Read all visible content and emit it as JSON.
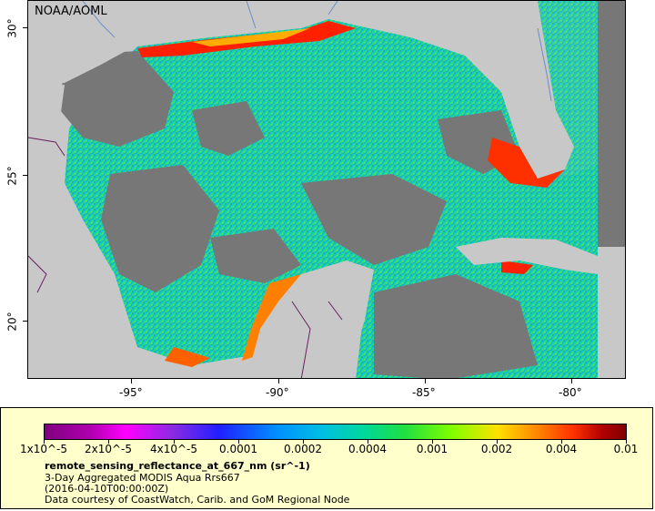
{
  "map": {
    "credit": "NOAA/AOML",
    "x_axis_labels": [
      "-95°",
      "-90°",
      "-85°",
      "-80°"
    ],
    "y_axis_labels": [
      "30°",
      "25°",
      "20°"
    ],
    "colors": {
      "land": "#c8c8c8",
      "no_data": "#777777",
      "border": "#6a1f5f",
      "river": "#6b8fc9"
    }
  },
  "legend": {
    "colorbar_labels": [
      "1x10^-5",
      "2x10^-5",
      "4x10^-5",
      "0.0001",
      "0.0002",
      "0.0004",
      "0.001",
      "0.002",
      "0.004",
      "0.01"
    ],
    "title": "remote_sensing_reflectance_at_667_nm (sr^-1)",
    "line1": "3-Day Aggregated MODIS Aqua Rrs667",
    "line2": "(2016-04-10T00:00:00Z)",
    "line3": "Data courtesy of CoastWatch, Carib. and GoM Regional Node"
  }
}
